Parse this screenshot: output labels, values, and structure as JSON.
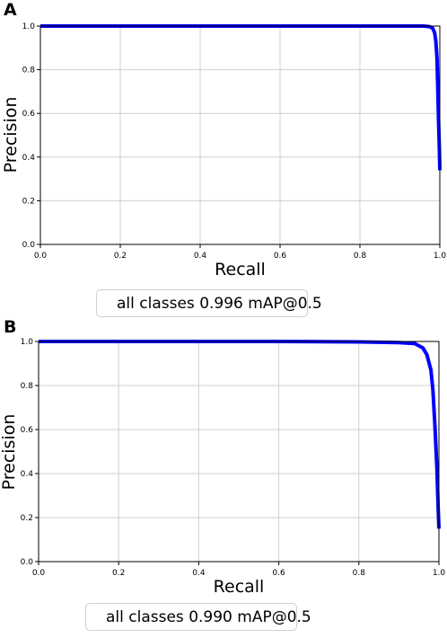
{
  "panels": [
    {
      "letter": "A"
    },
    {
      "letter": "B"
    }
  ],
  "chart_data": [
    {
      "type": "line",
      "xlabel": "Recall",
      "ylabel": "Precision",
      "xlim": [
        0.0,
        1.0
      ],
      "ylim": [
        0.0,
        1.0
      ],
      "xticks": [
        "0.0",
        "0.2",
        "0.4",
        "0.6",
        "0.8",
        "1.0"
      ],
      "yticks": [
        "0.0",
        "0.2",
        "0.4",
        "0.6",
        "0.8",
        "1.0"
      ],
      "grid": true,
      "legend_position": "bottom",
      "series": [
        {
          "name": "all classes 0.996 mAP@0.5",
          "color": "#0000ff",
          "x": [
            0.0,
            0.2,
            0.4,
            0.6,
            0.8,
            0.96,
            0.975,
            0.982,
            0.987,
            0.99,
            0.993,
            0.995,
            0.997,
            0.999,
            1.0
          ],
          "y": [
            1.0,
            1.0,
            1.0,
            1.0,
            1.0,
            1.0,
            0.997,
            0.99,
            0.97,
            0.93,
            0.85,
            0.7,
            0.55,
            0.42,
            0.34
          ]
        }
      ]
    },
    {
      "type": "line",
      "xlabel": "Recall",
      "ylabel": "Precision",
      "xlim": [
        0.0,
        1.0
      ],
      "ylim": [
        0.0,
        1.0
      ],
      "xticks": [
        "0.0",
        "0.2",
        "0.4",
        "0.6",
        "0.8",
        "1.0"
      ],
      "yticks": [
        "0.0",
        "0.2",
        "0.4",
        "0.6",
        "0.8",
        "1.0"
      ],
      "grid": true,
      "legend_position": "bottom",
      "series": [
        {
          "name": "all classes 0.990 mAP@0.5",
          "color": "#0000ff",
          "x": [
            0.0,
            0.2,
            0.4,
            0.6,
            0.8,
            0.9,
            0.94,
            0.96,
            0.97,
            0.98,
            0.985,
            0.99,
            0.995,
            0.998,
            1.0
          ],
          "y": [
            1.0,
            1.0,
            1.0,
            1.0,
            0.998,
            0.995,
            0.99,
            0.97,
            0.94,
            0.87,
            0.78,
            0.62,
            0.42,
            0.25,
            0.15
          ]
        }
      ]
    }
  ]
}
